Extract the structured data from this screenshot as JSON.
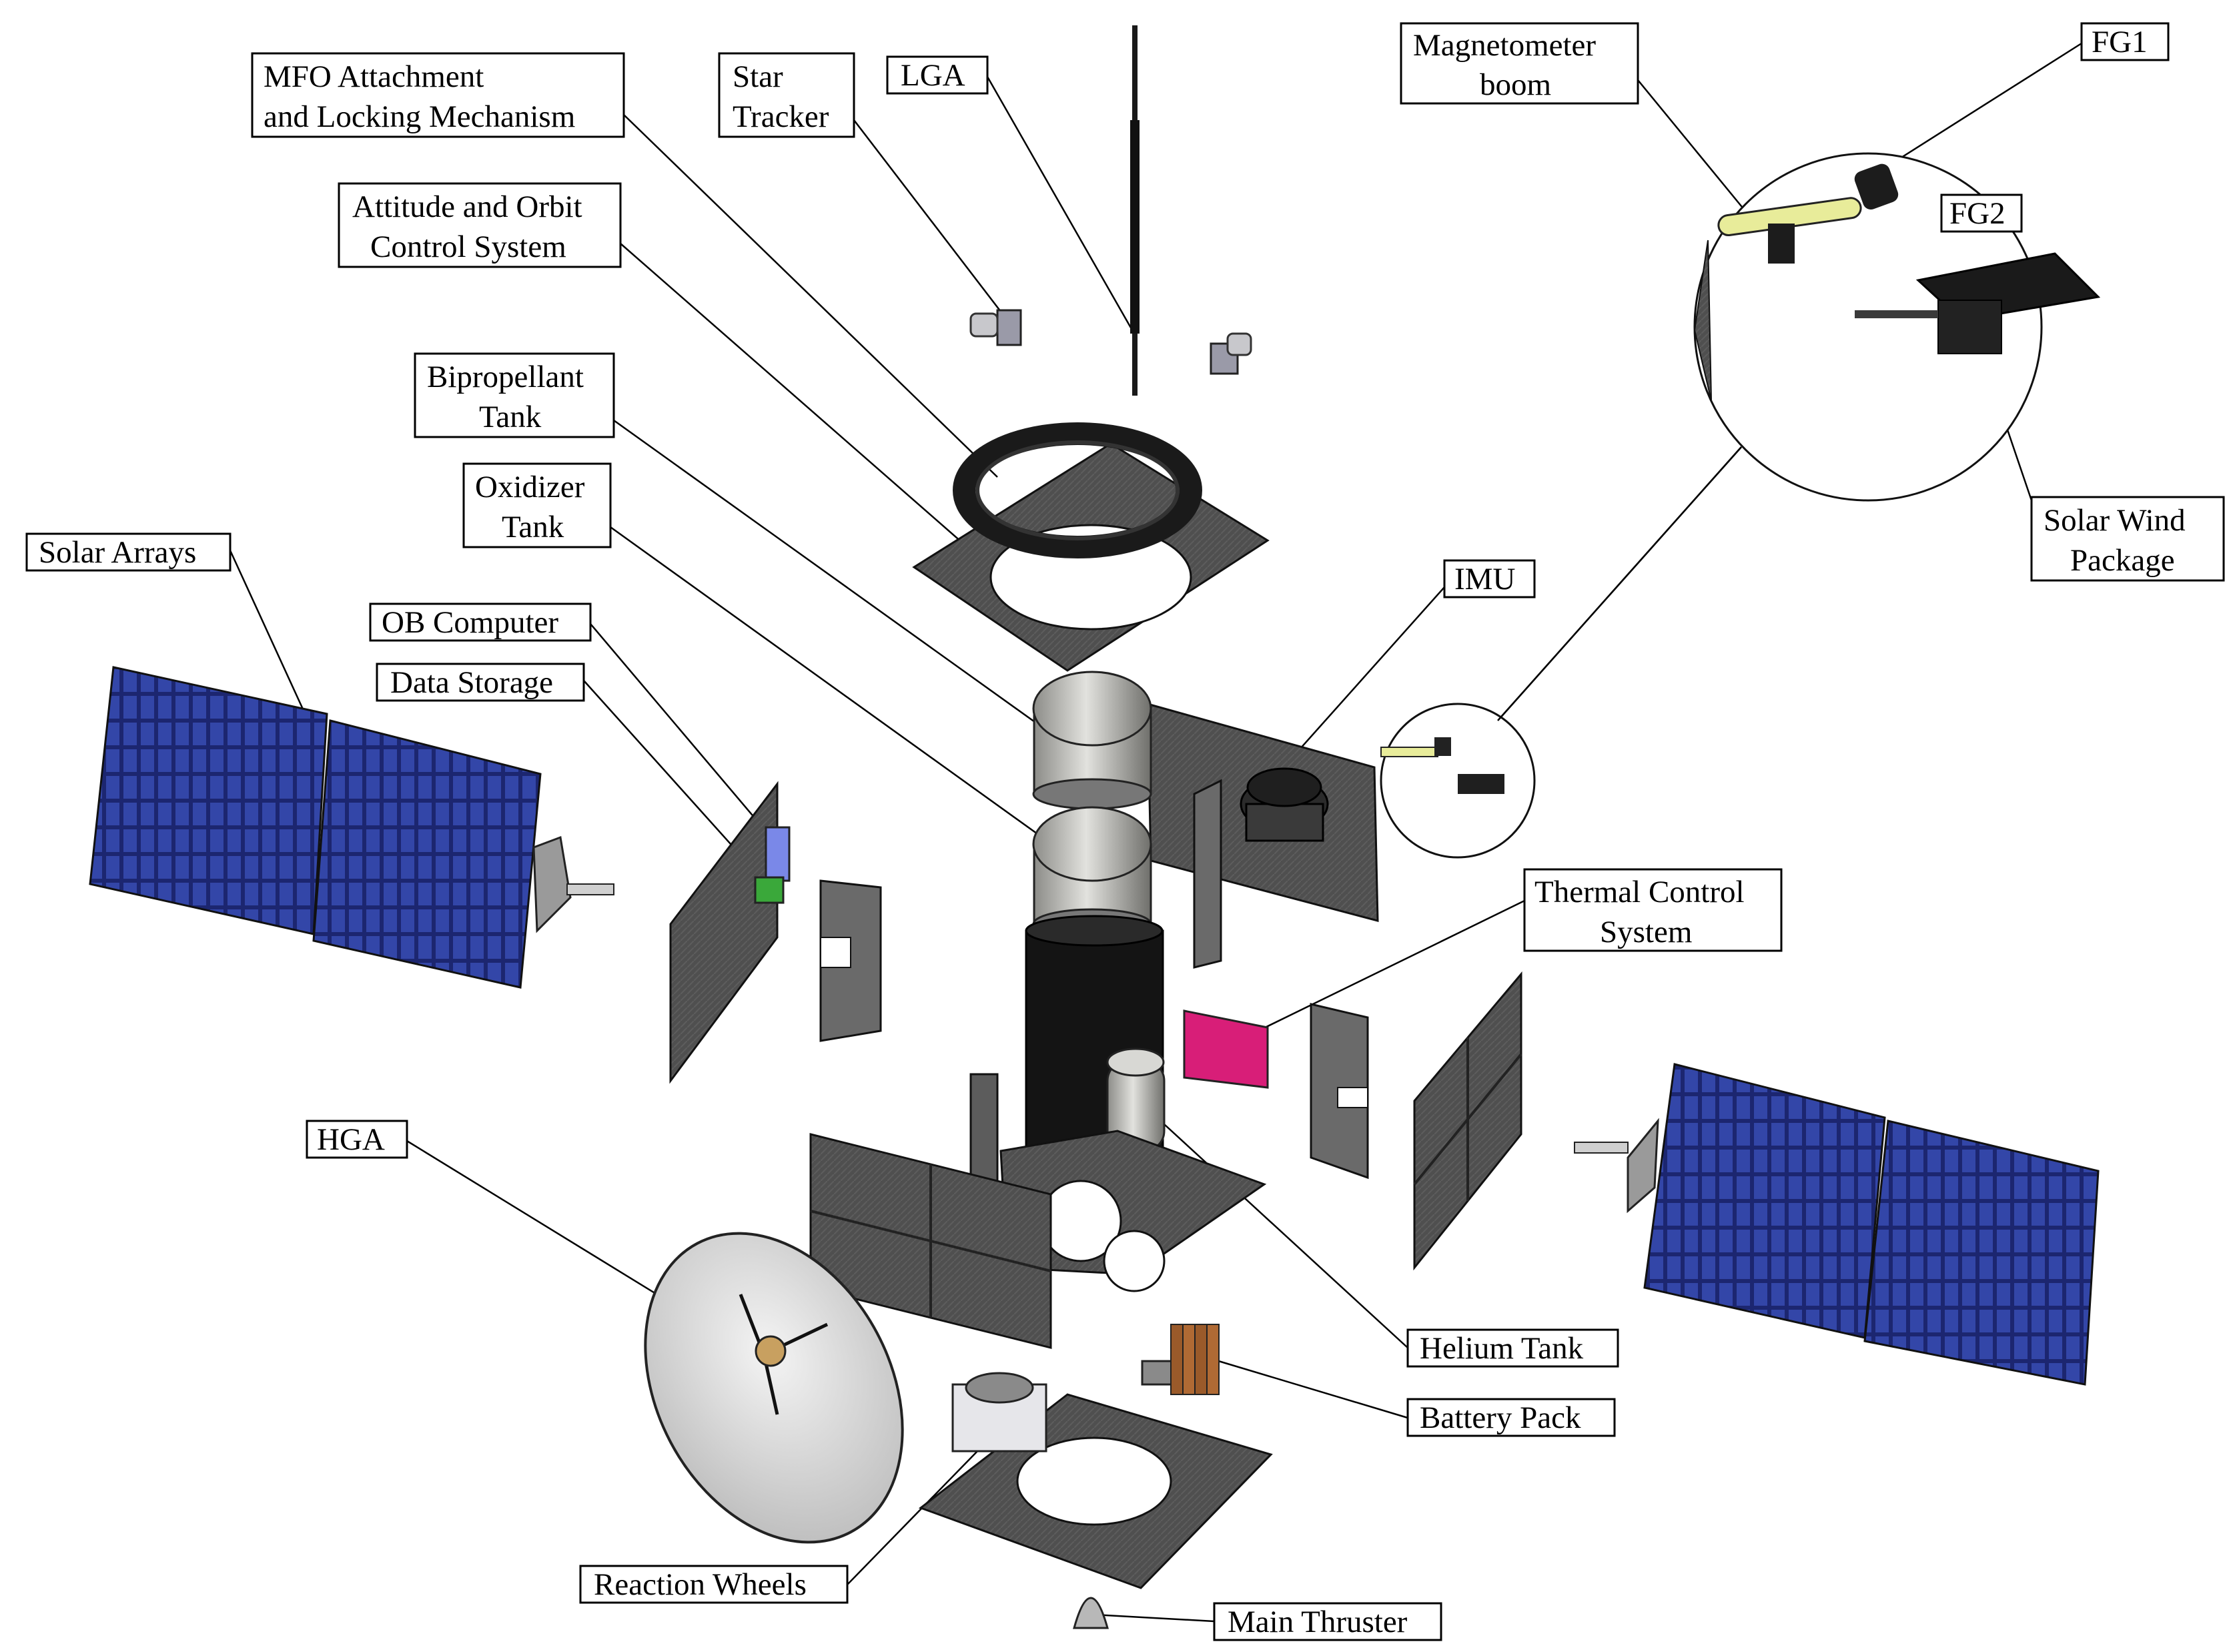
{
  "labels": {
    "mfo": [
      "MFO Attachment",
      "and Locking Mechanism"
    ],
    "star_tracker": [
      "Star",
      "Tracker"
    ],
    "lga": [
      "LGA"
    ],
    "magnetometer_boom": [
      "Magnetometer",
      "boom"
    ],
    "fg1": [
      "FG1"
    ],
    "fg2": [
      "FG2"
    ],
    "aocs": [
      "Attitude and Orbit",
      "Control System"
    ],
    "biprop_tank": [
      "Bipropellant",
      "Tank"
    ],
    "oxidizer_tank": [
      "Oxidizer",
      "Tank"
    ],
    "solar_arrays": [
      "Solar Arrays"
    ],
    "ob_computer": [
      "OB Computer"
    ],
    "data_storage": [
      "Data Storage"
    ],
    "imu": [
      "IMU"
    ],
    "solar_wind": [
      "Solar Wind",
      "Package"
    ],
    "thermal_control": [
      "Thermal Control",
      "System"
    ],
    "hga": [
      "HGA"
    ],
    "helium_tank": [
      "Helium Tank"
    ],
    "battery_pack": [
      "Battery Pack"
    ],
    "reaction_wheels": [
      "Reaction Wheels"
    ],
    "main_thruster": [
      "Main Thruster"
    ]
  },
  "colors": {
    "solar_cell": "#2b3a8c",
    "panel": "#4a4a4a",
    "tank_silver": "#c8c8c4",
    "thermal_pink": "#d81e78",
    "battery_brown": "#9a5a2a",
    "boom_yellow": "#e8ec9a"
  }
}
